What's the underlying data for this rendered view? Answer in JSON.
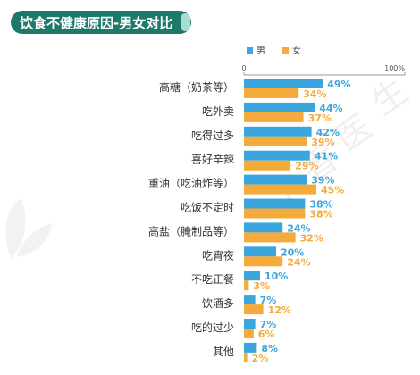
{
  "chart_data": {
    "type": "bar",
    "orientation": "horizontal",
    "title": "饮食不健康原因-男女对比",
    "categories": [
      "高糖（奶茶等）",
      "吃外卖",
      "吃得过多",
      "喜好辛辣",
      "重油（吃油炸等）",
      "吃饭不定时",
      "高盐（腌制品等）",
      "吃宵夜",
      "不吃正餐",
      "饮酒多",
      "吃的过少",
      "其他"
    ],
    "series": [
      {
        "name": "男",
        "values": [
          49,
          44,
          42,
          41,
          39,
          38,
          24,
          20,
          10,
          7,
          7,
          8
        ],
        "color": "#3aa6dd"
      },
      {
        "name": "女",
        "values": [
          34,
          37,
          39,
          29,
          45,
          38,
          32,
          24,
          3,
          12,
          6,
          2
        ],
        "color": "#f5ab3c"
      }
    ],
    "value_suffix": "%",
    "xlim": [
      0,
      100
    ],
    "x_tick_labels": [
      "0",
      "100%"
    ],
    "legend_position": "top",
    "grid": false,
    "title_bar_color": "#1d7a6a",
    "watermark_text": "丁香医生"
  }
}
